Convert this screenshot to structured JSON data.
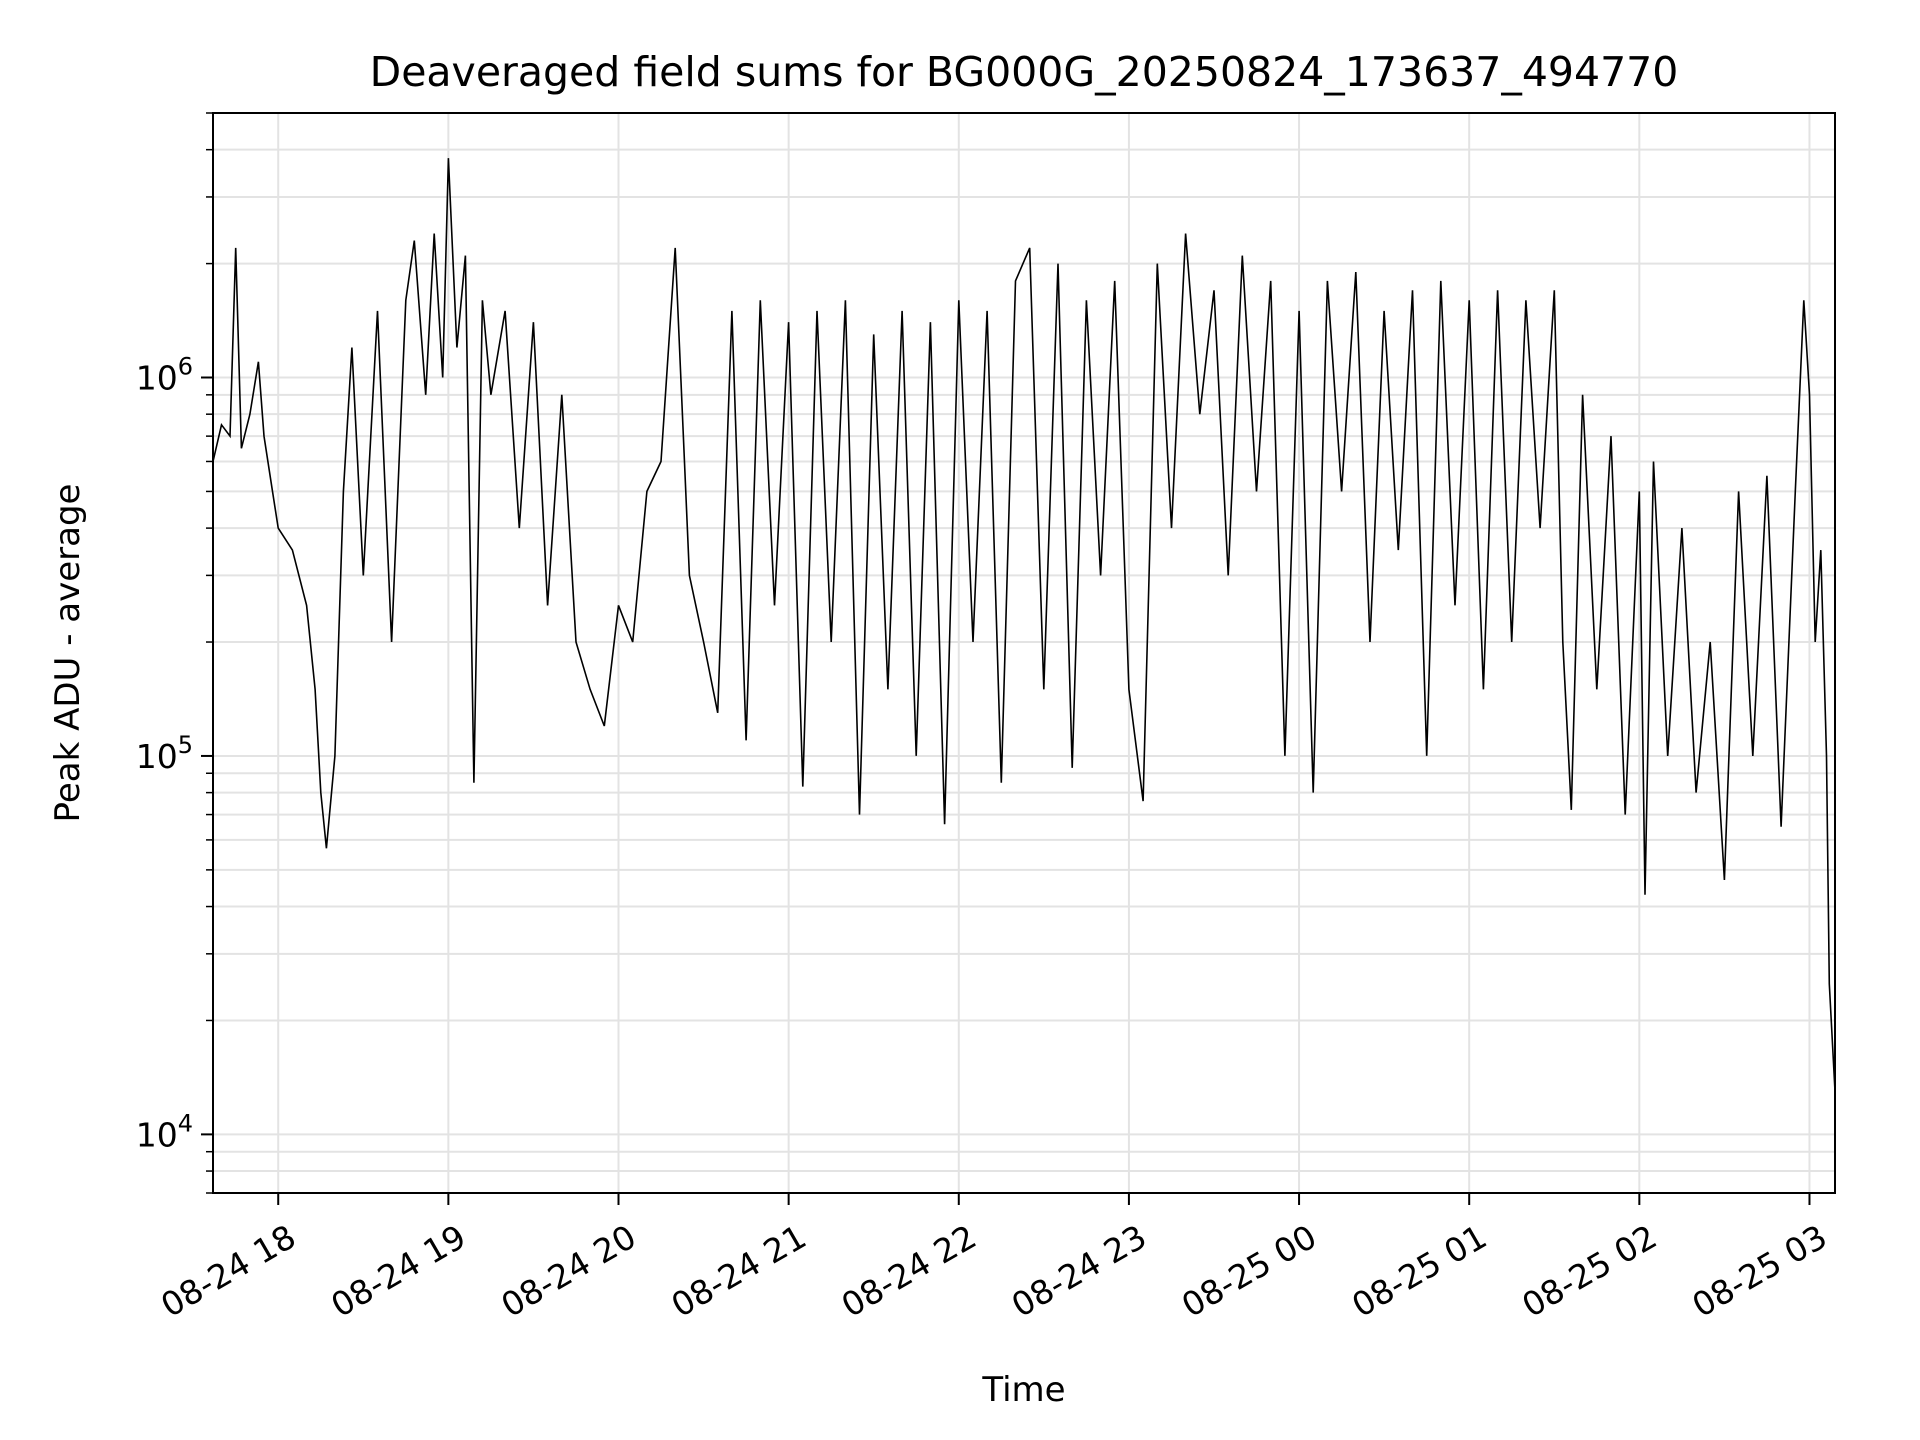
{
  "chart_data": {
    "type": "line",
    "title": "Deaveraged field sums for BG000G_20250824_173637_494770",
    "xlabel": "Time",
    "ylabel": "Peak ADU - average",
    "x_tick_labels": [
      "08-24 18",
      "08-24 19",
      "08-24 20",
      "08-24 21",
      "08-24 22",
      "08-24 23",
      "08-25 00",
      "08-25 01",
      "08-25 02",
      "08-25 03"
    ],
    "x_ticks": [
      "2025-08-24 18:00",
      "2025-08-24 19:00",
      "2025-08-24 20:00",
      "2025-08-24 21:00",
      "2025-08-24 22:00",
      "2025-08-24 23:00",
      "2025-08-25 00:00",
      "2025-08-25 01:00",
      "2025-08-25 02:00",
      "2025-08-25 03:00"
    ],
    "xlim": [
      "2025-08-24 17:37",
      "2025-08-25 03:09"
    ],
    "y_scale": "log",
    "y_tick_labels": [
      {
        "base": "10",
        "exp": "4",
        "value": 10000
      },
      {
        "base": "10",
        "exp": "5",
        "value": 100000
      },
      {
        "base": "10",
        "exp": "6",
        "value": 1000000
      }
    ],
    "ylim": [
      7000,
      5000000
    ],
    "grid": true,
    "series": [
      {
        "color": "#000000",
        "points": [
          [
            "2025-08-24 17:37",
            600000
          ],
          [
            "2025-08-24 17:40",
            750000
          ],
          [
            "2025-08-24 17:43",
            700000
          ],
          [
            "2025-08-24 17:45",
            2200000
          ],
          [
            "2025-08-24 17:47",
            650000
          ],
          [
            "2025-08-24 17:50",
            800000
          ],
          [
            "2025-08-24 17:53",
            1100000
          ],
          [
            "2025-08-24 17:55",
            700000
          ],
          [
            "2025-08-24 17:58",
            500000
          ],
          [
            "2025-08-24 18:00",
            400000
          ],
          [
            "2025-08-24 18:05",
            350000
          ],
          [
            "2025-08-24 18:10",
            250000
          ],
          [
            "2025-08-24 18:13",
            150000
          ],
          [
            "2025-08-24 18:15",
            80000
          ],
          [
            "2025-08-24 18:17",
            57000
          ],
          [
            "2025-08-24 18:20",
            100000
          ],
          [
            "2025-08-24 18:23",
            500000
          ],
          [
            "2025-08-24 18:26",
            1200000
          ],
          [
            "2025-08-24 18:30",
            300000
          ],
          [
            "2025-08-24 18:35",
            1500000
          ],
          [
            "2025-08-24 18:40",
            200000
          ],
          [
            "2025-08-24 18:45",
            1600000
          ],
          [
            "2025-08-24 18:48",
            2300000
          ],
          [
            "2025-08-24 18:52",
            900000
          ],
          [
            "2025-08-24 18:55",
            2400000
          ],
          [
            "2025-08-24 18:58",
            1000000
          ],
          [
            "2025-08-24 19:00",
            3800000
          ],
          [
            "2025-08-24 19:03",
            1200000
          ],
          [
            "2025-08-24 19:06",
            2100000
          ],
          [
            "2025-08-24 19:09",
            85000
          ],
          [
            "2025-08-24 19:12",
            1600000
          ],
          [
            "2025-08-24 19:15",
            900000
          ],
          [
            "2025-08-24 19:20",
            1500000
          ],
          [
            "2025-08-24 19:25",
            400000
          ],
          [
            "2025-08-24 19:30",
            1400000
          ],
          [
            "2025-08-24 19:35",
            250000
          ],
          [
            "2025-08-24 19:40",
            900000
          ],
          [
            "2025-08-24 19:45",
            200000
          ],
          [
            "2025-08-24 19:50",
            150000
          ],
          [
            "2025-08-24 19:55",
            120000
          ],
          [
            "2025-08-24 20:00",
            250000
          ],
          [
            "2025-08-24 20:05",
            200000
          ],
          [
            "2025-08-24 20:10",
            500000
          ],
          [
            "2025-08-24 20:15",
            600000
          ],
          [
            "2025-08-24 20:20",
            2200000
          ],
          [
            "2025-08-24 20:25",
            300000
          ],
          [
            "2025-08-24 20:30",
            200000
          ],
          [
            "2025-08-24 20:35",
            130000
          ],
          [
            "2025-08-24 20:40",
            1500000
          ],
          [
            "2025-08-24 20:45",
            110000
          ],
          [
            "2025-08-24 20:50",
            1600000
          ],
          [
            "2025-08-24 20:55",
            250000
          ],
          [
            "2025-08-24 21:00",
            1400000
          ],
          [
            "2025-08-24 21:05",
            83000
          ],
          [
            "2025-08-24 21:10",
            1500000
          ],
          [
            "2025-08-24 21:15",
            200000
          ],
          [
            "2025-08-24 21:20",
            1600000
          ],
          [
            "2025-08-24 21:25",
            70000
          ],
          [
            "2025-08-24 21:30",
            1300000
          ],
          [
            "2025-08-24 21:35",
            150000
          ],
          [
            "2025-08-24 21:40",
            1500000
          ],
          [
            "2025-08-24 21:45",
            100000
          ],
          [
            "2025-08-24 21:50",
            1400000
          ],
          [
            "2025-08-24 21:55",
            66000
          ],
          [
            "2025-08-24 22:00",
            1600000
          ],
          [
            "2025-08-24 22:05",
            200000
          ],
          [
            "2025-08-24 22:10",
            1500000
          ],
          [
            "2025-08-24 22:15",
            85000
          ],
          [
            "2025-08-24 22:20",
            1800000
          ],
          [
            "2025-08-24 22:25",
            2200000
          ],
          [
            "2025-08-24 22:30",
            150000
          ],
          [
            "2025-08-24 22:35",
            2000000
          ],
          [
            "2025-08-24 22:40",
            93000
          ],
          [
            "2025-08-24 22:45",
            1600000
          ],
          [
            "2025-08-24 22:50",
            300000
          ],
          [
            "2025-08-24 22:55",
            1800000
          ],
          [
            "2025-08-24 23:00",
            150000
          ],
          [
            "2025-08-24 23:05",
            76000
          ],
          [
            "2025-08-24 23:10",
            2000000
          ],
          [
            "2025-08-24 23:15",
            400000
          ],
          [
            "2025-08-24 23:20",
            2400000
          ],
          [
            "2025-08-24 23:25",
            800000
          ],
          [
            "2025-08-24 23:30",
            1700000
          ],
          [
            "2025-08-24 23:35",
            300000
          ],
          [
            "2025-08-24 23:40",
            2100000
          ],
          [
            "2025-08-24 23:45",
            500000
          ],
          [
            "2025-08-24 23:50",
            1800000
          ],
          [
            "2025-08-24 23:55",
            100000
          ],
          [
            "2025-08-25 00:00",
            1500000
          ],
          [
            "2025-08-25 00:05",
            80000
          ],
          [
            "2025-08-25 00:10",
            1800000
          ],
          [
            "2025-08-25 00:15",
            500000
          ],
          [
            "2025-08-25 00:20",
            1900000
          ],
          [
            "2025-08-25 00:25",
            200000
          ],
          [
            "2025-08-25 00:30",
            1500000
          ],
          [
            "2025-08-25 00:35",
            350000
          ],
          [
            "2025-08-25 00:40",
            1700000
          ],
          [
            "2025-08-25 00:45",
            100000
          ],
          [
            "2025-08-25 00:50",
            1800000
          ],
          [
            "2025-08-25 00:55",
            250000
          ],
          [
            "2025-08-25 01:00",
            1600000
          ],
          [
            "2025-08-25 01:05",
            150000
          ],
          [
            "2025-08-25 01:10",
            1700000
          ],
          [
            "2025-08-25 01:15",
            200000
          ],
          [
            "2025-08-25 01:20",
            1600000
          ],
          [
            "2025-08-25 01:25",
            400000
          ],
          [
            "2025-08-25 01:30",
            1700000
          ],
          [
            "2025-08-25 01:33",
            200000
          ],
          [
            "2025-08-25 01:36",
            72000
          ],
          [
            "2025-08-25 01:40",
            900000
          ],
          [
            "2025-08-25 01:45",
            150000
          ],
          [
            "2025-08-25 01:50",
            700000
          ],
          [
            "2025-08-25 01:55",
            70000
          ],
          [
            "2025-08-25 02:00",
            500000
          ],
          [
            "2025-08-25 02:02",
            43000
          ],
          [
            "2025-08-25 02:05",
            600000
          ],
          [
            "2025-08-25 02:10",
            100000
          ],
          [
            "2025-08-25 02:15",
            400000
          ],
          [
            "2025-08-25 02:20",
            80000
          ],
          [
            "2025-08-25 02:25",
            200000
          ],
          [
            "2025-08-25 02:30",
            47000
          ],
          [
            "2025-08-25 02:35",
            500000
          ],
          [
            "2025-08-25 02:40",
            100000
          ],
          [
            "2025-08-25 02:45",
            550000
          ],
          [
            "2025-08-25 02:50",
            65000
          ],
          [
            "2025-08-25 02:55",
            500000
          ],
          [
            "2025-08-25 02:58",
            1600000
          ],
          [
            "2025-08-25 03:00",
            900000
          ],
          [
            "2025-08-25 03:02",
            200000
          ],
          [
            "2025-08-25 03:04",
            350000
          ],
          [
            "2025-08-25 03:06",
            100000
          ],
          [
            "2025-08-25 03:07",
            25000
          ],
          [
            "2025-08-25 03:09",
            13000
          ]
        ]
      }
    ]
  }
}
